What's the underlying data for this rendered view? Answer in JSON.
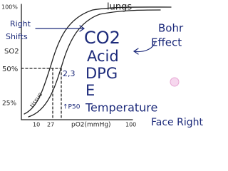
{
  "axis": {
    "y_labels": [
      "100%",
      "SO2",
      "50%",
      "25%"
    ],
    "x_labels": [
      "10",
      "27",
      "pO2(mmHg)",
      "100"
    ]
  },
  "annotations": {
    "lungs": "lungs",
    "right_shifts": [
      "Right",
      "Shifts"
    ],
    "tissue": "tissue",
    "p50": "↑P50",
    "factors": [
      "CO2",
      "Acid",
      "2,3",
      "DPG",
      "E",
      "Temperature"
    ],
    "bohr_effect": [
      "Bohr",
      "Effect"
    ],
    "face_right": "Face Right"
  }
}
